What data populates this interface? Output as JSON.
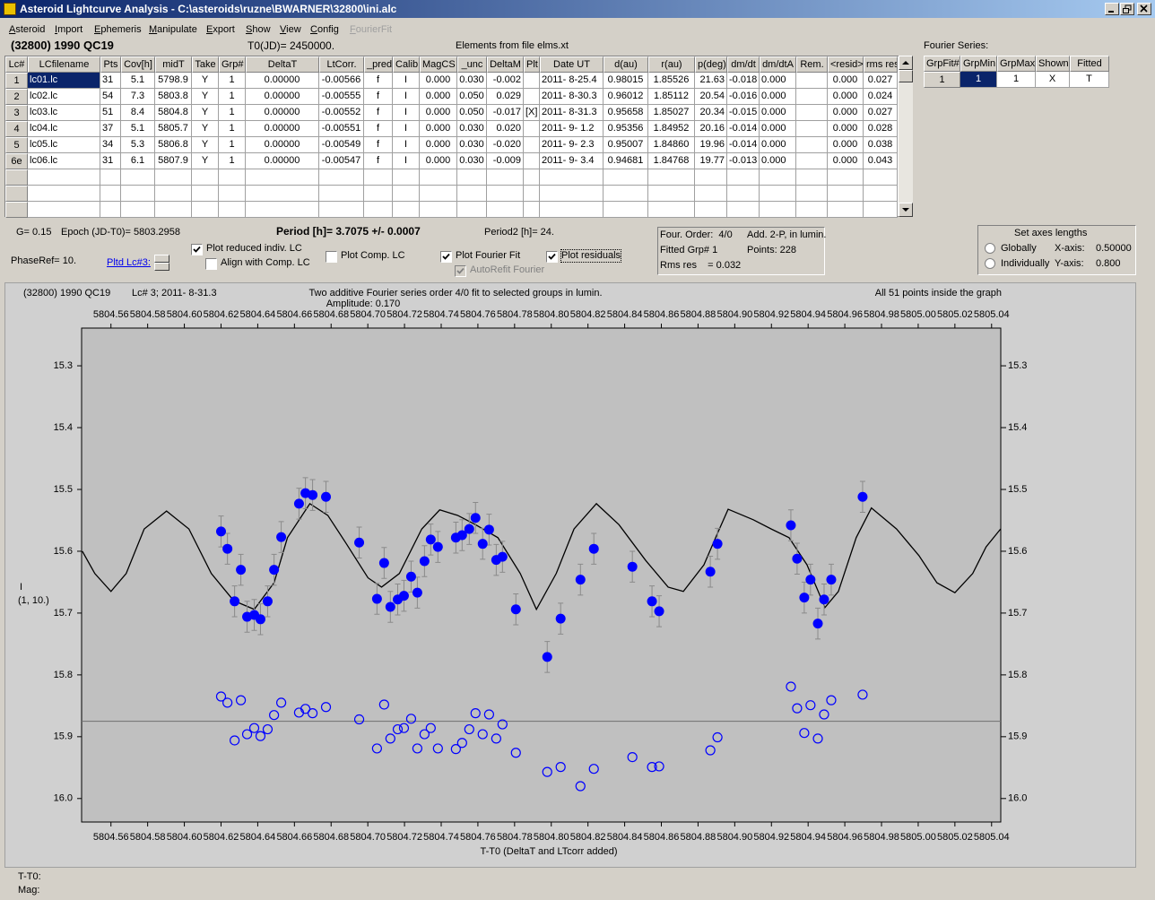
{
  "window": {
    "title": "Asteroid Lightcurve Analysis - C:\\asteroids\\ruzne\\BWARNER\\32800\\ini.alc"
  },
  "menu": [
    "Asteroid",
    "Import",
    "Ephemeris",
    "Manipulate",
    "Export",
    "Show",
    "View",
    "Config",
    "FourierFit"
  ],
  "header": {
    "object": "(32800) 1990 QC19",
    "t0": "T0(JD)= 2450000.",
    "elements": "Elements from file elms.xt",
    "fourier_label": "Fourier Series:"
  },
  "table": {
    "columns": [
      "Lc#",
      "LCfilename",
      "Pts",
      "Cov[h]",
      "midT",
      "Take",
      "Grp#",
      "DeltaT",
      "LtCorr.",
      "_pred",
      "Calib",
      "MagCS",
      "_unc",
      "DeltaM",
      "Plt",
      "Date UT",
      "d(au)",
      "r(au)",
      "p(deg)",
      "dm/dt",
      "dm/dtA",
      "Rem.",
      "<resid>",
      "rms res"
    ],
    "rows": [
      [
        "1",
        "lc01.lc",
        "31",
        "5.1",
        "5798.9",
        "Y",
        "1",
        "0.00000",
        "-0.00566",
        "f",
        "I",
        "0.000",
        "0.030",
        "-0.002",
        null,
        "2011- 8-25.4",
        "0.98015",
        "1.85526",
        "21.63",
        "-0.018",
        "0.000",
        null,
        "0.000",
        "0.027"
      ],
      [
        "2",
        "lc02.lc",
        "54",
        "7.3",
        "5803.8",
        "Y",
        "1",
        "0.00000",
        "-0.00555",
        "f",
        "I",
        "0.000",
        "0.050",
        "0.029",
        null,
        "2011- 8-30.3",
        "0.96012",
        "1.85112",
        "20.54",
        "-0.016",
        "0.000",
        null,
        "0.000",
        "0.024"
      ],
      [
        "3",
        "lc03.lc",
        "51",
        "8.4",
        "5804.8",
        "Y",
        "1",
        "0.00000",
        "-0.00552",
        "f",
        "I",
        "0.000",
        "0.050",
        "-0.017",
        "[X]",
        "2011- 8-31.3",
        "0.95658",
        "1.85027",
        "20.34",
        "-0.015",
        "0.000",
        null,
        "0.000",
        "0.027"
      ],
      [
        "4",
        "lc04.lc",
        "37",
        "5.1",
        "5805.7",
        "Y",
        "1",
        "0.00000",
        "-0.00551",
        "f",
        "I",
        "0.000",
        "0.030",
        "0.020",
        null,
        "2011- 9- 1.2",
        "0.95356",
        "1.84952",
        "20.16",
        "-0.014",
        "0.000",
        null,
        "0.000",
        "0.028"
      ],
      [
        "5",
        "lc05.lc",
        "34",
        "5.3",
        "5806.8",
        "Y",
        "1",
        "0.00000",
        "-0.00549",
        "f",
        "I",
        "0.000",
        "0.030",
        "-0.020",
        null,
        "2011- 9- 2.3",
        "0.95007",
        "1.84860",
        "19.96",
        "-0.014",
        "0.000",
        null,
        "0.000",
        "0.038"
      ],
      [
        "6e",
        "lc06.lc",
        "31",
        "6.1",
        "5807.9",
        "Y",
        "1",
        "0.00000",
        "-0.00547",
        "f",
        "I",
        "0.000",
        "0.030",
        "-0.009",
        null,
        "2011- 9- 3.4",
        "0.94681",
        "1.84768",
        "19.77",
        "-0.013",
        "0.000",
        null,
        "0.000",
        "0.043"
      ]
    ]
  },
  "fourier_table": {
    "columns": [
      "GrpFit#",
      "GrpMin",
      "GrpMax",
      "Shown",
      "Fitted"
    ],
    "rows": [
      [
        "1",
        "1",
        "1",
        "X",
        "T"
      ]
    ]
  },
  "params": {
    "g": "G= 0.15",
    "epoch": "Epoch (JD-T0)= 5803.2958",
    "period": "Period [h]= 3.7075 +/- 0.0007",
    "period2": "Period2 [h]= 24.",
    "phase_ref": "PhaseRef= 10.",
    "plotted_lc": "Pltd Lc#3:"
  },
  "controls": [
    {
      "label": "Plot reduced indiv. LC",
      "checked": true
    },
    {
      "label": "Align with Comp. LC",
      "checked": false
    },
    {
      "label": "Plot Comp. LC",
      "checked": false
    },
    {
      "label": "Plot Fourier Fit",
      "checked": true
    },
    {
      "label": "AutoRefit Fourier",
      "checked": true,
      "enabled": false
    },
    {
      "label": "Plot residuals",
      "checked": true
    }
  ],
  "fit_info": [
    "Four. Order:  4/0",
    "Add. 2-P, in lumin.",
    "Fitted Grp# 1",
    "Points: 228",
    "Rms res    = 0.032"
  ],
  "axes_box": {
    "title": "Set axes lengths",
    "options": [
      "Globally",
      "Individually"
    ],
    "x_label": "X-axis:",
    "x_value": "0.50000",
    "y_label": "Y-axis:",
    "y_value": "0.800"
  },
  "chart_data": {
    "type": "scatter",
    "object": "(32800) 1990 QC19",
    "lc_label": "Lc# 3; 2011- 8-31.3",
    "title": "Two additive Fourier series order 4/0 fit to selected groups in lumin.",
    "subtitle": "Amplitude: 0.170",
    "note": "All 51 points inside the graph",
    "xlabel": "T-T0 (DeltaT and LTcorr added)",
    "ylabel": "I",
    "ylabel2": "(1, 10.)",
    "xlim": [
      5804.544,
      5805.045
    ],
    "ylim": [
      15.239,
      16.038
    ],
    "y_inverted": true,
    "xticks": [
      5804.56,
      5804.58,
      {
        "value": 5804.6,
        "label": "5804.60"
      },
      5804.62,
      5804.64,
      5804.66,
      5804.68,
      {
        "value": 5804.7,
        "label": "5804.70"
      },
      5804.72,
      5804.74,
      5804.76,
      5804.78,
      {
        "value": 5804.8,
        "label": "5804.80"
      },
      5804.82,
      5804.84,
      5804.86,
      5804.88,
      {
        "value": 5804.9,
        "label": "5804.90"
      },
      5804.92,
      5804.94,
      5804.96,
      5804.98,
      {
        "value": 5805,
        "label": "5805.00"
      },
      5805.02,
      5805.04
    ],
    "yticks": [
      15.3,
      15.4,
      15.5,
      15.6,
      15.7,
      15.8,
      15.9,
      {
        "value": 16,
        "label": "16.0"
      }
    ],
    "points": {
      "color": "#0000ff",
      "error_color": "#8a8a8a",
      "x": [
        5804.62,
        5804.6235,
        5804.6274,
        5804.6308,
        5804.6342,
        5804.6381,
        5804.6415,
        5804.6454,
        5804.6489,
        5804.6528,
        5804.6625,
        5804.666,
        5804.6699,
        5804.6772,
        5804.6953,
        5804.705,
        5804.7089,
        5804.7123,
        5804.7163,
        5804.7197,
        5804.7236,
        5804.727,
        5804.7309,
        5804.7343,
        5804.7382,
        5804.748,
        5804.7514,
        5804.7553,
        5804.7587,
        5804.7626,
        5804.7661,
        5804.77,
        5804.7734,
        5804.7807,
        5804.7978,
        5804.8051,
        5804.8159,
        5804.8232,
        5804.8442,
        5804.8549,
        5804.8588,
        5804.8867,
        5804.8906,
        5804.9306,
        5804.934,
        5804.9379,
        5804.9413,
        5804.9453,
        5804.9487,
        5804.9526,
        5804.9697
      ],
      "y": [
        15.568,
        15.596,
        15.681,
        15.63,
        15.706,
        15.703,
        15.71,
        15.681,
        15.63,
        15.577,
        15.523,
        15.506,
        15.509,
        15.512,
        15.586,
        15.677,
        15.619,
        15.69,
        15.678,
        15.672,
        15.641,
        15.667,
        15.616,
        15.581,
        15.593,
        15.578,
        15.574,
        15.564,
        15.546,
        15.588,
        15.565,
        15.614,
        15.609,
        15.694,
        15.771,
        15.709,
        15.646,
        15.596,
        15.625,
        15.681,
        15.697,
        15.633,
        15.588,
        15.558,
        15.612,
        15.675,
        15.646,
        15.717,
        15.678,
        15.646,
        15.512
      ],
      "errors": [
        0.025,
        0.025,
        0.025,
        0.025,
        0.025,
        0.025,
        0.025,
        0.025,
        0.025,
        0.025,
        0.025,
        0.025,
        0.025,
        0.025,
        0.025,
        0.025,
        0.025,
        0.025,
        0.025,
        0.025,
        0.025,
        0.025,
        0.025,
        0.025,
        0.025,
        0.025,
        0.025,
        0.025,
        0.025,
        0.025,
        0.025,
        0.025,
        0.025,
        0.025,
        0.025,
        0.025,
        0.025,
        0.025,
        0.025,
        0.025,
        0.025,
        0.025,
        0.025,
        0.025,
        0.025,
        0.025,
        0.025,
        0.025,
        0.025,
        0.025,
        0.025
      ]
    },
    "residuals": {
      "color": "#0000ff",
      "y": [
        15.835,
        15.845,
        15.906,
        15.841,
        15.896,
        15.886,
        15.899,
        15.888,
        15.865,
        15.845,
        15.861,
        15.855,
        15.862,
        15.852,
        15.872,
        15.919,
        15.848,
        15.903,
        15.888,
        15.886,
        15.871,
        15.919,
        15.896,
        15.886,
        15.919,
        15.92,
        15.91,
        15.888,
        15.862,
        15.896,
        15.864,
        15.903,
        15.88,
        15.926,
        15.957,
        15.949,
        15.98,
        15.952,
        15.933,
        15.949,
        15.948,
        15.922,
        15.901,
        15.819,
        15.854,
        15.894,
        15.849,
        15.903,
        15.864,
        15.841,
        15.832
      ]
    },
    "residual_baseline": 15.875,
    "baseline_color": "#707070",
    "fit": {
      "color": "#000000",
      "x": [
        5804.5444,
        5804.5512,
        5804.56,
        5804.5683,
        5804.5781,
        5804.5903,
        5804.6025,
        5804.6147,
        5804.6269,
        5804.6381,
        5804.6489,
        5804.6562,
        5804.6684,
        5804.6782,
        5804.6879,
        5804.7001,
        5804.7075,
        5804.7172,
        5804.7294,
        5804.7392,
        5804.749,
        5804.7587,
        5804.7709,
        5804.7831,
        5804.7919,
        5804.8027,
        5804.8124,
        5804.8246,
        5804.8369,
        5804.8515,
        5804.8637,
        5804.872,
        5804.8832,
        5804.8906,
        5804.8964,
        5804.9101,
        5804.9199,
        5804.9296,
        5804.9394,
        5804.9492,
        5804.9565,
        5804.9662,
        5804.9745,
        5804.9882,
        5805.0004,
        5805.0102,
        5805.02,
        5805.0297,
        5805.037,
        5805.0449
      ],
      "y": [
        15.6,
        15.636,
        15.665,
        15.636,
        15.564,
        15.535,
        15.564,
        15.636,
        15.68,
        15.694,
        15.651,
        15.578,
        15.523,
        15.542,
        15.586,
        15.643,
        15.658,
        15.636,
        15.564,
        15.533,
        15.542,
        15.557,
        15.578,
        15.636,
        15.694,
        15.636,
        15.564,
        15.523,
        15.557,
        15.615,
        15.658,
        15.665,
        15.622,
        15.571,
        15.532,
        15.549,
        15.564,
        15.578,
        15.622,
        15.691,
        15.665,
        15.578,
        15.53,
        15.564,
        15.607,
        15.651,
        15.667,
        15.636,
        15.593,
        15.564
      ]
    }
  },
  "footer": [
    "T-T0:",
    "Mag:"
  ]
}
